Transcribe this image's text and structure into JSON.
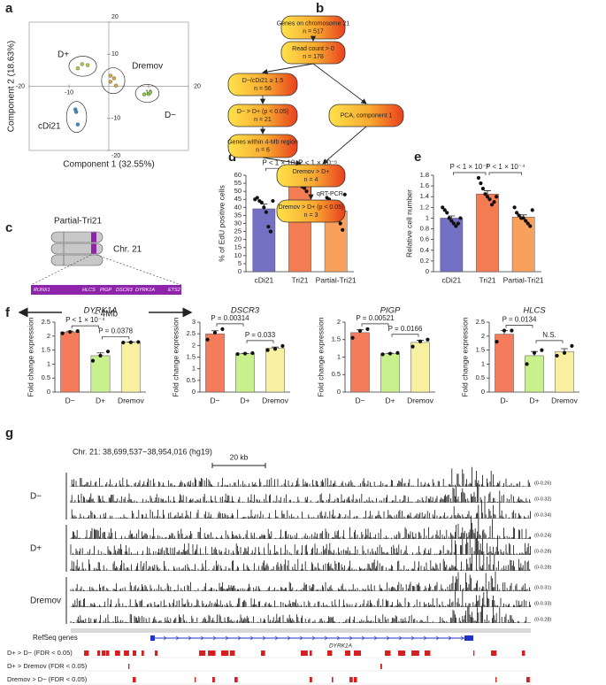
{
  "panel_labels": [
    "a",
    "b",
    "c",
    "d",
    "e",
    "f",
    "g"
  ],
  "chart_data": [
    {
      "type": "scatter",
      "x_label": "Component 1 (32.55%)",
      "y_label": "Component 2 (18.63%)",
      "xlim": [
        -20,
        20
      ],
      "ylim": [
        -20,
        20
      ],
      "xticks": [
        -20,
        -10,
        10,
        20
      ],
      "yticks": [
        -20,
        -10,
        10,
        20
      ],
      "series": [
        {
          "name": "D+",
          "color": "#b8c83a",
          "x": [
            -7.8,
            -6.7,
            -5.3
          ],
          "y": [
            5.6,
            6.9,
            6.6
          ]
        },
        {
          "name": "Dremov",
          "color": "#d9a934",
          "x": [
            0.4,
            1.3,
            0.4,
            1.8
          ],
          "y": [
            3.3,
            2.5,
            1.4,
            0.2
          ]
        },
        {
          "name": "D−",
          "color": "#8cc83c",
          "x": [
            8.9,
            10.0,
            10.4
          ],
          "y": [
            -2.5,
            -2.4,
            -1.9
          ]
        },
        {
          "name": "cDi21",
          "color": "#3c8cc8",
          "x": [
            -8.4,
            -8.2,
            -7.8
          ],
          "y": [
            -7.2,
            -8.0,
            -11.9
          ]
        }
      ]
    },
    {
      "type": "bar",
      "y_label": "% of EdU positive cells",
      "categories": [
        "cDi21",
        "Tri21",
        "Partial-Tri21"
      ],
      "colors": [
        "#7470c4",
        "#f47c52",
        "#f8a05c"
      ],
      "values": [
        39.1,
        55.6,
        37.8
      ],
      "errors": [
        3.0,
        1.5,
        2.8
      ],
      "points": [
        [
          45,
          46,
          44,
          43,
          40,
          37,
          28,
          25,
          44
        ],
        [
          61,
          58,
          57,
          56,
          55,
          53,
          52,
          50,
          58
        ],
        [
          46,
          45,
          40,
          38,
          35,
          32,
          30,
          26,
          48
        ]
      ],
      "ylim": [
        0,
        60
      ],
      "yticks": [
        0,
        5,
        10,
        15,
        20,
        25,
        30,
        35,
        40,
        45,
        50,
        55,
        60
      ],
      "annotations": [
        "P < 1 × 10⁻⁵",
        "P < 1 × 10⁻⁵"
      ]
    },
    {
      "type": "bar",
      "y_label": "Relative cell number",
      "categories": [
        "cDi21",
        "Tri21",
        "Partial-Tri21"
      ],
      "colors": [
        "#7470c4",
        "#f47c52",
        "#f8a05c"
      ],
      "values": [
        1.0,
        1.45,
        1.02
      ],
      "errors": [
        0.04,
        0.06,
        0.04
      ],
      "points": [
        [
          1.2,
          1.15,
          1.1,
          1.0,
          0.95,
          0.9,
          0.85,
          0.9,
          1.0
        ],
        [
          1.75,
          1.65,
          1.55,
          1.45,
          1.4,
          1.35,
          1.25,
          1.3,
          1.4
        ],
        [
          1.2,
          1.1,
          1.05,
          1.0,
          1.0,
          0.95,
          0.9,
          0.85,
          1.15
        ]
      ],
      "ylim": [
        0,
        1.8
      ],
      "yticks": [
        0,
        0.2,
        0.4,
        0.6,
        0.8,
        1,
        1.2,
        1.4,
        1.6,
        1.8
      ],
      "annotations": [
        "P < 1 × 10⁻⁴",
        "P < 1 × 10⁻⁴"
      ]
    },
    {
      "type": "bar",
      "title": "DYRK1A",
      "y_label": "Fold change expression",
      "categories": [
        "D−",
        "D+",
        "Dremov"
      ],
      "colors": [
        "#f47c5c",
        "#c8f08c",
        "#f8f0a0"
      ],
      "values": [
        2.15,
        1.3,
        1.78
      ],
      "errors": [
        0.03,
        0.1,
        0.01
      ],
      "points": [
        [
          2.1,
          2.15,
          2.18
        ],
        [
          1.12,
          1.3,
          1.45
        ],
        [
          1.77,
          1.78,
          1.79
        ]
      ],
      "ylim": [
        0,
        2.5
      ],
      "yticks": [
        0,
        0.5,
        1,
        1.5,
        2,
        2.5
      ],
      "annotations": [
        "P < 1 × 10⁻⁴",
        "P = 0.0378"
      ]
    },
    {
      "type": "bar",
      "title": "DSCR3",
      "y_label": "Fold change expression",
      "categories": [
        "D−",
        "D+",
        "Dremov"
      ],
      "colors": [
        "#f47c5c",
        "#c8f08c",
        "#f8f0a0"
      ],
      "values": [
        2.5,
        1.65,
        1.88
      ],
      "errors": [
        0.13,
        0.01,
        0.05
      ],
      "points": [
        [
          2.25,
          2.55,
          2.7
        ],
        [
          1.63,
          1.65,
          1.67
        ],
        [
          1.8,
          1.85,
          1.98
        ]
      ],
      "ylim": [
        0,
        3
      ],
      "yticks": [
        0,
        0.5,
        1,
        1.5,
        2,
        2.5,
        3
      ],
      "annotations": [
        "P = 0.00314",
        "P = 0.033"
      ]
    },
    {
      "type": "bar",
      "title": "PIGP",
      "y_label": "Fold change expression",
      "categories": [
        "D−",
        "D+",
        "Dremov"
      ],
      "colors": [
        "#f47c5c",
        "#c8f08c",
        "#f8f0a0"
      ],
      "values": [
        1.7,
        1.1,
        1.42
      ],
      "errors": [
        0.08,
        0.01,
        0.06
      ],
      "points": [
        [
          1.55,
          1.75,
          1.8
        ],
        [
          1.08,
          1.1,
          1.12
        ],
        [
          1.3,
          1.45,
          1.5
        ]
      ],
      "ylim": [
        0,
        2
      ],
      "yticks": [
        0,
        0.5,
        1,
        1.5,
        2
      ],
      "annotations": [
        "P = 0.00521",
        "P = 0.0166"
      ]
    },
    {
      "type": "bar",
      "title": "HLCS",
      "y_label": "Fold change expression",
      "categories": [
        "D-",
        "D+",
        "Dremov"
      ],
      "colors": [
        "#f47c5c",
        "#c8f08c",
        "#f8f0a0"
      ],
      "values": [
        2.07,
        1.3,
        1.45
      ],
      "errors": [
        0.13,
        0.15,
        0.1
      ],
      "points": [
        [
          1.8,
          2.2,
          2.2
        ],
        [
          1.0,
          1.4,
          1.5
        ],
        [
          1.3,
          1.4,
          1.65
        ]
      ],
      "ylim": [
        0,
        2.5
      ],
      "yticks": [
        0,
        0.5,
        1,
        1.5,
        2,
        2.5
      ],
      "annotations": [
        "P = 0.0134",
        "N.S."
      ]
    }
  ],
  "flowchart": {
    "nodes": [
      {
        "lines": [
          "Genes on chromosome 21",
          "n = 517"
        ]
      },
      {
        "lines": [
          "Read count > 0",
          "n = 178"
        ]
      },
      {
        "lines": [
          "D−/cDi21 ≥ 1.5",
          "n = 56"
        ]
      },
      {
        "lines": [
          "D− > D+ (p < 0.05)",
          "n = 21"
        ]
      },
      {
        "lines": [
          "Genes within 4-Mb region",
          "n = 6"
        ]
      },
      {
        "lines": [
          "PCA, component 1"
        ]
      },
      {
        "lines": [
          "Dremov > D+",
          "n = 4"
        ]
      },
      {
        "lines": [
          "Dremov > D+ (p < 0.05)",
          "n = 3"
        ]
      }
    ],
    "edge_label": "qRT-PCR"
  },
  "diagram": {
    "title": "Partial-Tri21",
    "chromosome": "Chr. 21",
    "genes": [
      "RUNX1",
      "HLCS",
      "PIGP",
      "DSCR3",
      "DYRK1A",
      "ETS2"
    ],
    "span": "~ 4Mb"
  },
  "tracks": {
    "region": "Chr. 21: 38,699,537−38,954,016 (hg19)",
    "scale": "20 kb",
    "groups": [
      {
        "name": "D−",
        "ranges": [
          "(0-0.26)",
          "(0-0.32)",
          "(0-0.34)"
        ]
      },
      {
        "name": "D+",
        "ranges": [
          "(0-0.24)",
          "(0-0.28)",
          "(0-0.28)"
        ]
      },
      {
        "name": "Dremov",
        "ranges": [
          "(0-0.31)",
          "(0-0.33)",
          "(0-0.28)"
        ]
      }
    ],
    "gene_track": "RefSeq genes",
    "gene": "DYRK1A",
    "comparisons": [
      "D+ > D− (FDR < 0.05)",
      "D+ > Dremov (FDR < 0.05)",
      "Dremov > D− (FDR < 0.05)"
    ]
  }
}
